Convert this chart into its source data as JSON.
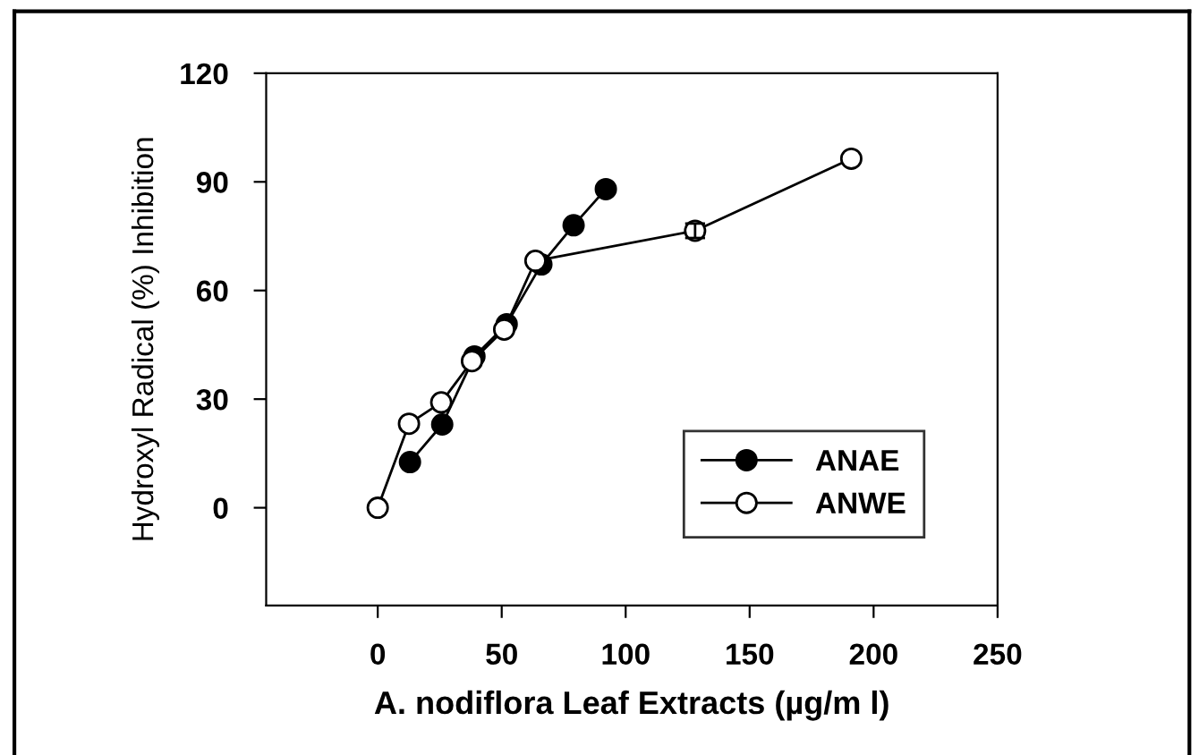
{
  "chart_data": {
    "type": "line",
    "xlabel": "A. nodiflora Leaf Extracts (µg/m l)",
    "ylabel": "Hydroxyl Radical (%) Inhibition",
    "series": [
      {
        "name": "ANAE",
        "color": "#000000",
        "x": [
          13,
          26,
          39,
          52,
          66,
          79,
          92
        ],
        "values": [
          12.6,
          23,
          41.8,
          50.7,
          67.2,
          78,
          88
        ]
      },
      {
        "name": "ANWE",
        "color": "#000000",
        "x": [
          0,
          12.6,
          25.6,
          38,
          51,
          63.6,
          128,
          191
        ],
        "values": [
          0,
          23.2,
          29.1,
          40.5,
          49.2,
          68.2,
          76.5,
          96.4
        ],
        "errors": [
          null,
          null,
          null,
          null,
          null,
          null,
          2,
          null
        ]
      }
    ],
    "xlim": [
      -45,
      250
    ],
    "ylim": [
      -27,
      120
    ],
    "xticks": [
      0,
      50,
      100,
      150,
      200,
      250
    ],
    "yticks": [
      0,
      30,
      60,
      90,
      120
    ],
    "marker": "circle",
    "line_style": "solid",
    "legend": "bottom right",
    "grid": false
  }
}
